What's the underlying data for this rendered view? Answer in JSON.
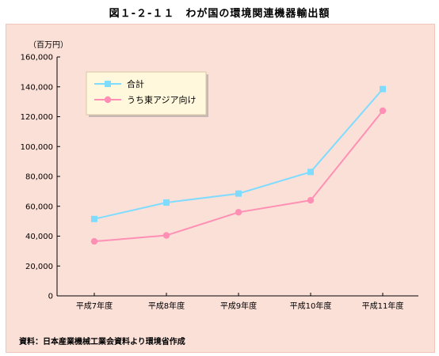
{
  "figure": {
    "title": "図１-２-１１　わが国の環境関連機器輸出額",
    "source": "資料：日本産業機械工業会資料より環境省作成"
  },
  "chart_data": {
    "type": "line",
    "title": "図１-２-１１　わが国の環境関連機器輸出額",
    "unit_label": "（百万円）",
    "categories": [
      "平成7年度",
      "平成8年度",
      "平成9年度",
      "平成10年度",
      "平成11年度"
    ],
    "ylim": [
      0,
      160000
    ],
    "y_ticks": [
      "160,000",
      "140,000",
      "120,000",
      "100,000",
      "80,000",
      "60,000",
      "40,000",
      "20,000",
      "0"
    ],
    "y_tick_values": [
      160000,
      140000,
      120000,
      100000,
      80000,
      60000,
      40000,
      20000,
      0
    ],
    "grid": false,
    "legend_position": "top-left",
    "series": [
      {
        "name": "合計",
        "values": [
          51500,
          62500,
          68500,
          83000,
          138500
        ],
        "color": "#7fdcff",
        "marker": "square"
      },
      {
        "name": "うち東アジア向け",
        "values": [
          36500,
          40500,
          56000,
          64000,
          124000
        ],
        "color": "#ff8fb4",
        "marker": "circle"
      }
    ],
    "colors": {
      "background": "#fbe0d8",
      "legend_background": "#fff8dc",
      "axis": "#000000"
    }
  }
}
